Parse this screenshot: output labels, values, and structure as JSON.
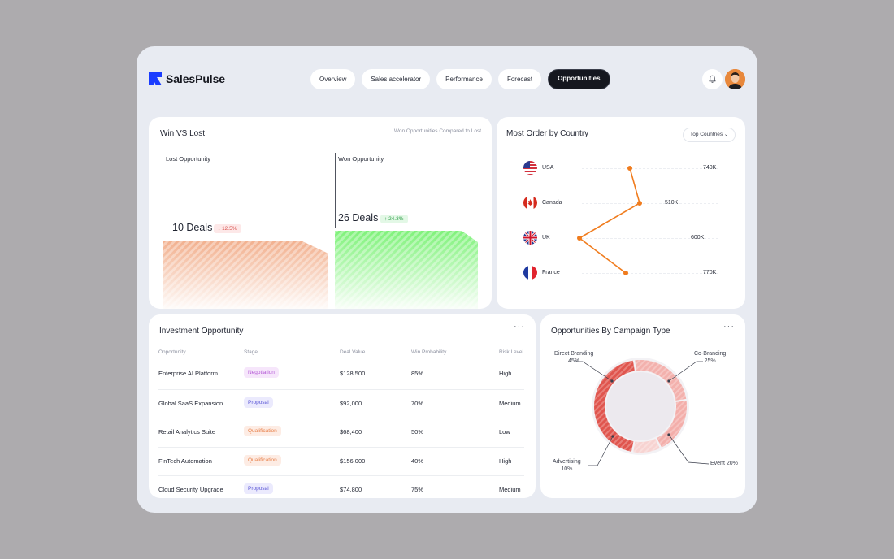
{
  "app": {
    "name": "SalesPulse"
  },
  "nav": [
    {
      "label": "Overview",
      "active": false
    },
    {
      "label": "Sales accelerator",
      "active": false
    },
    {
      "label": "Performance",
      "active": false
    },
    {
      "label": "Forecast",
      "active": false
    },
    {
      "label": "Opportunities",
      "active": true
    }
  ],
  "icons": {
    "bell": "bell-icon",
    "avatar": "avatar",
    "logo": "logo-icon",
    "more": "more-dots-icon"
  },
  "colors": {
    "brand": "#1a3cff",
    "accent": "#f07c1e",
    "lost": "#f2b08e",
    "won": "#7ff27a",
    "campaign": "#e0554e"
  },
  "win_vs_lost": {
    "title": "Win VS Lost",
    "subtitle": "Won Opportunities Compared to Lost",
    "lost": {
      "label": "Lost Opportunity",
      "deals": "10 Deals",
      "change": "12.5%",
      "direction": "down"
    },
    "won": {
      "label": "Won Opportunity",
      "deals": "26 Deals",
      "change": "24.3%",
      "direction": "up"
    }
  },
  "country": {
    "title": "Most Order by Country",
    "filter": "Top Countries",
    "rows": [
      {
        "name": "USA",
        "value_label": "740K",
        "value": 740
      },
      {
        "name": "Canada",
        "value_label": "510K",
        "value": 510
      },
      {
        "name": "UK",
        "value_label": "600K",
        "value": 600
      },
      {
        "name": "France",
        "value_label": "770K",
        "value": 770
      }
    ]
  },
  "investment": {
    "title": "Investment Opportunity",
    "columns": [
      "Opportunity",
      "Stage",
      "Deal Value",
      "Win Probability",
      "Risk Level"
    ],
    "rows": [
      {
        "opportunity": "Enterprise AI Platform",
        "stage": "Negotiation",
        "stage_type": "negotiation",
        "value": "$128,500",
        "probability": "85%",
        "risk": "High"
      },
      {
        "opportunity": "Global SaaS Expansion",
        "stage": "Proposal",
        "stage_type": "proposal",
        "value": "$92,000",
        "probability": "70%",
        "risk": "Medium"
      },
      {
        "opportunity": "Retail Analytics Suite",
        "stage": "Qualification",
        "stage_type": "qualification",
        "value": "$68,400",
        "probability": "50%",
        "risk": "Low"
      },
      {
        "opportunity": "FinTech Automation",
        "stage": "Qualification",
        "stage_type": "qualification",
        "value": "$156,000",
        "probability": "40%",
        "risk": "High"
      },
      {
        "opportunity": "Cloud Security Upgrade",
        "stage": "Proposal",
        "stage_type": "proposal",
        "value": "$74,800",
        "probability": "75%",
        "risk": "Medium"
      }
    ]
  },
  "campaign": {
    "title": "Opportunities By Campaign Type",
    "segments": [
      {
        "name": "Direct Branding",
        "percent_label": "45%",
        "percent": 45
      },
      {
        "name": "Co-Branding",
        "percent_label": "25%",
        "percent": 25
      },
      {
        "name": "Event",
        "percent_label": "20%",
        "percent": 20
      },
      {
        "name": "Advertising",
        "percent_label": "10%",
        "percent": 10
      }
    ]
  }
}
